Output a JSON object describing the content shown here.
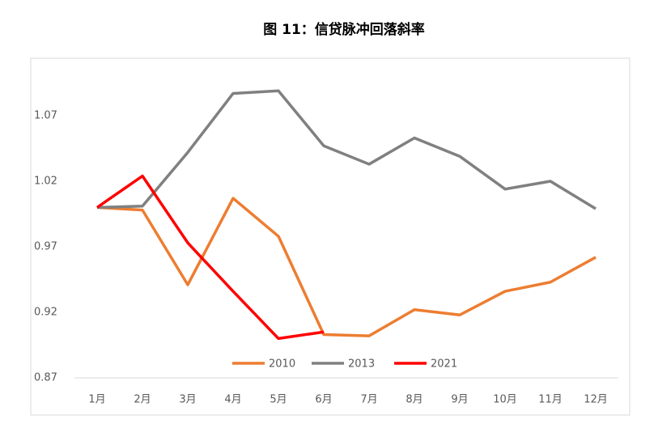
{
  "chart_data": {
    "type": "line",
    "title": "图 11：信贷脉冲回落斜率",
    "categories": [
      "1月",
      "2月",
      "3月",
      "4月",
      "5月",
      "6月",
      "7月",
      "8月",
      "9月",
      "10月",
      "11月",
      "12月"
    ],
    "series": [
      {
        "name": "2010",
        "color": "#ed7d31",
        "values": [
          1.0,
          0.998,
          0.941,
          1.007,
          0.978,
          0.903,
          0.902,
          0.922,
          0.918,
          0.936,
          0.943,
          0.962
        ]
      },
      {
        "name": "2013",
        "color": "#808080",
        "values": [
          1.0,
          1.001,
          1.042,
          1.087,
          1.089,
          1.047,
          1.033,
          1.053,
          1.039,
          1.014,
          1.02,
          0.999
        ]
      },
      {
        "name": "2021",
        "color": "#ff0000",
        "values": [
          1.0,
          1.024,
          0.973,
          0.936,
          0.9,
          0.905,
          null,
          null,
          null,
          null,
          null,
          null
        ]
      }
    ],
    "ylim": [
      0.87,
      1.1
    ],
    "yticks": [
      0.87,
      0.92,
      0.97,
      1.02,
      1.07
    ],
    "grid": false,
    "legend": "bottom"
  }
}
